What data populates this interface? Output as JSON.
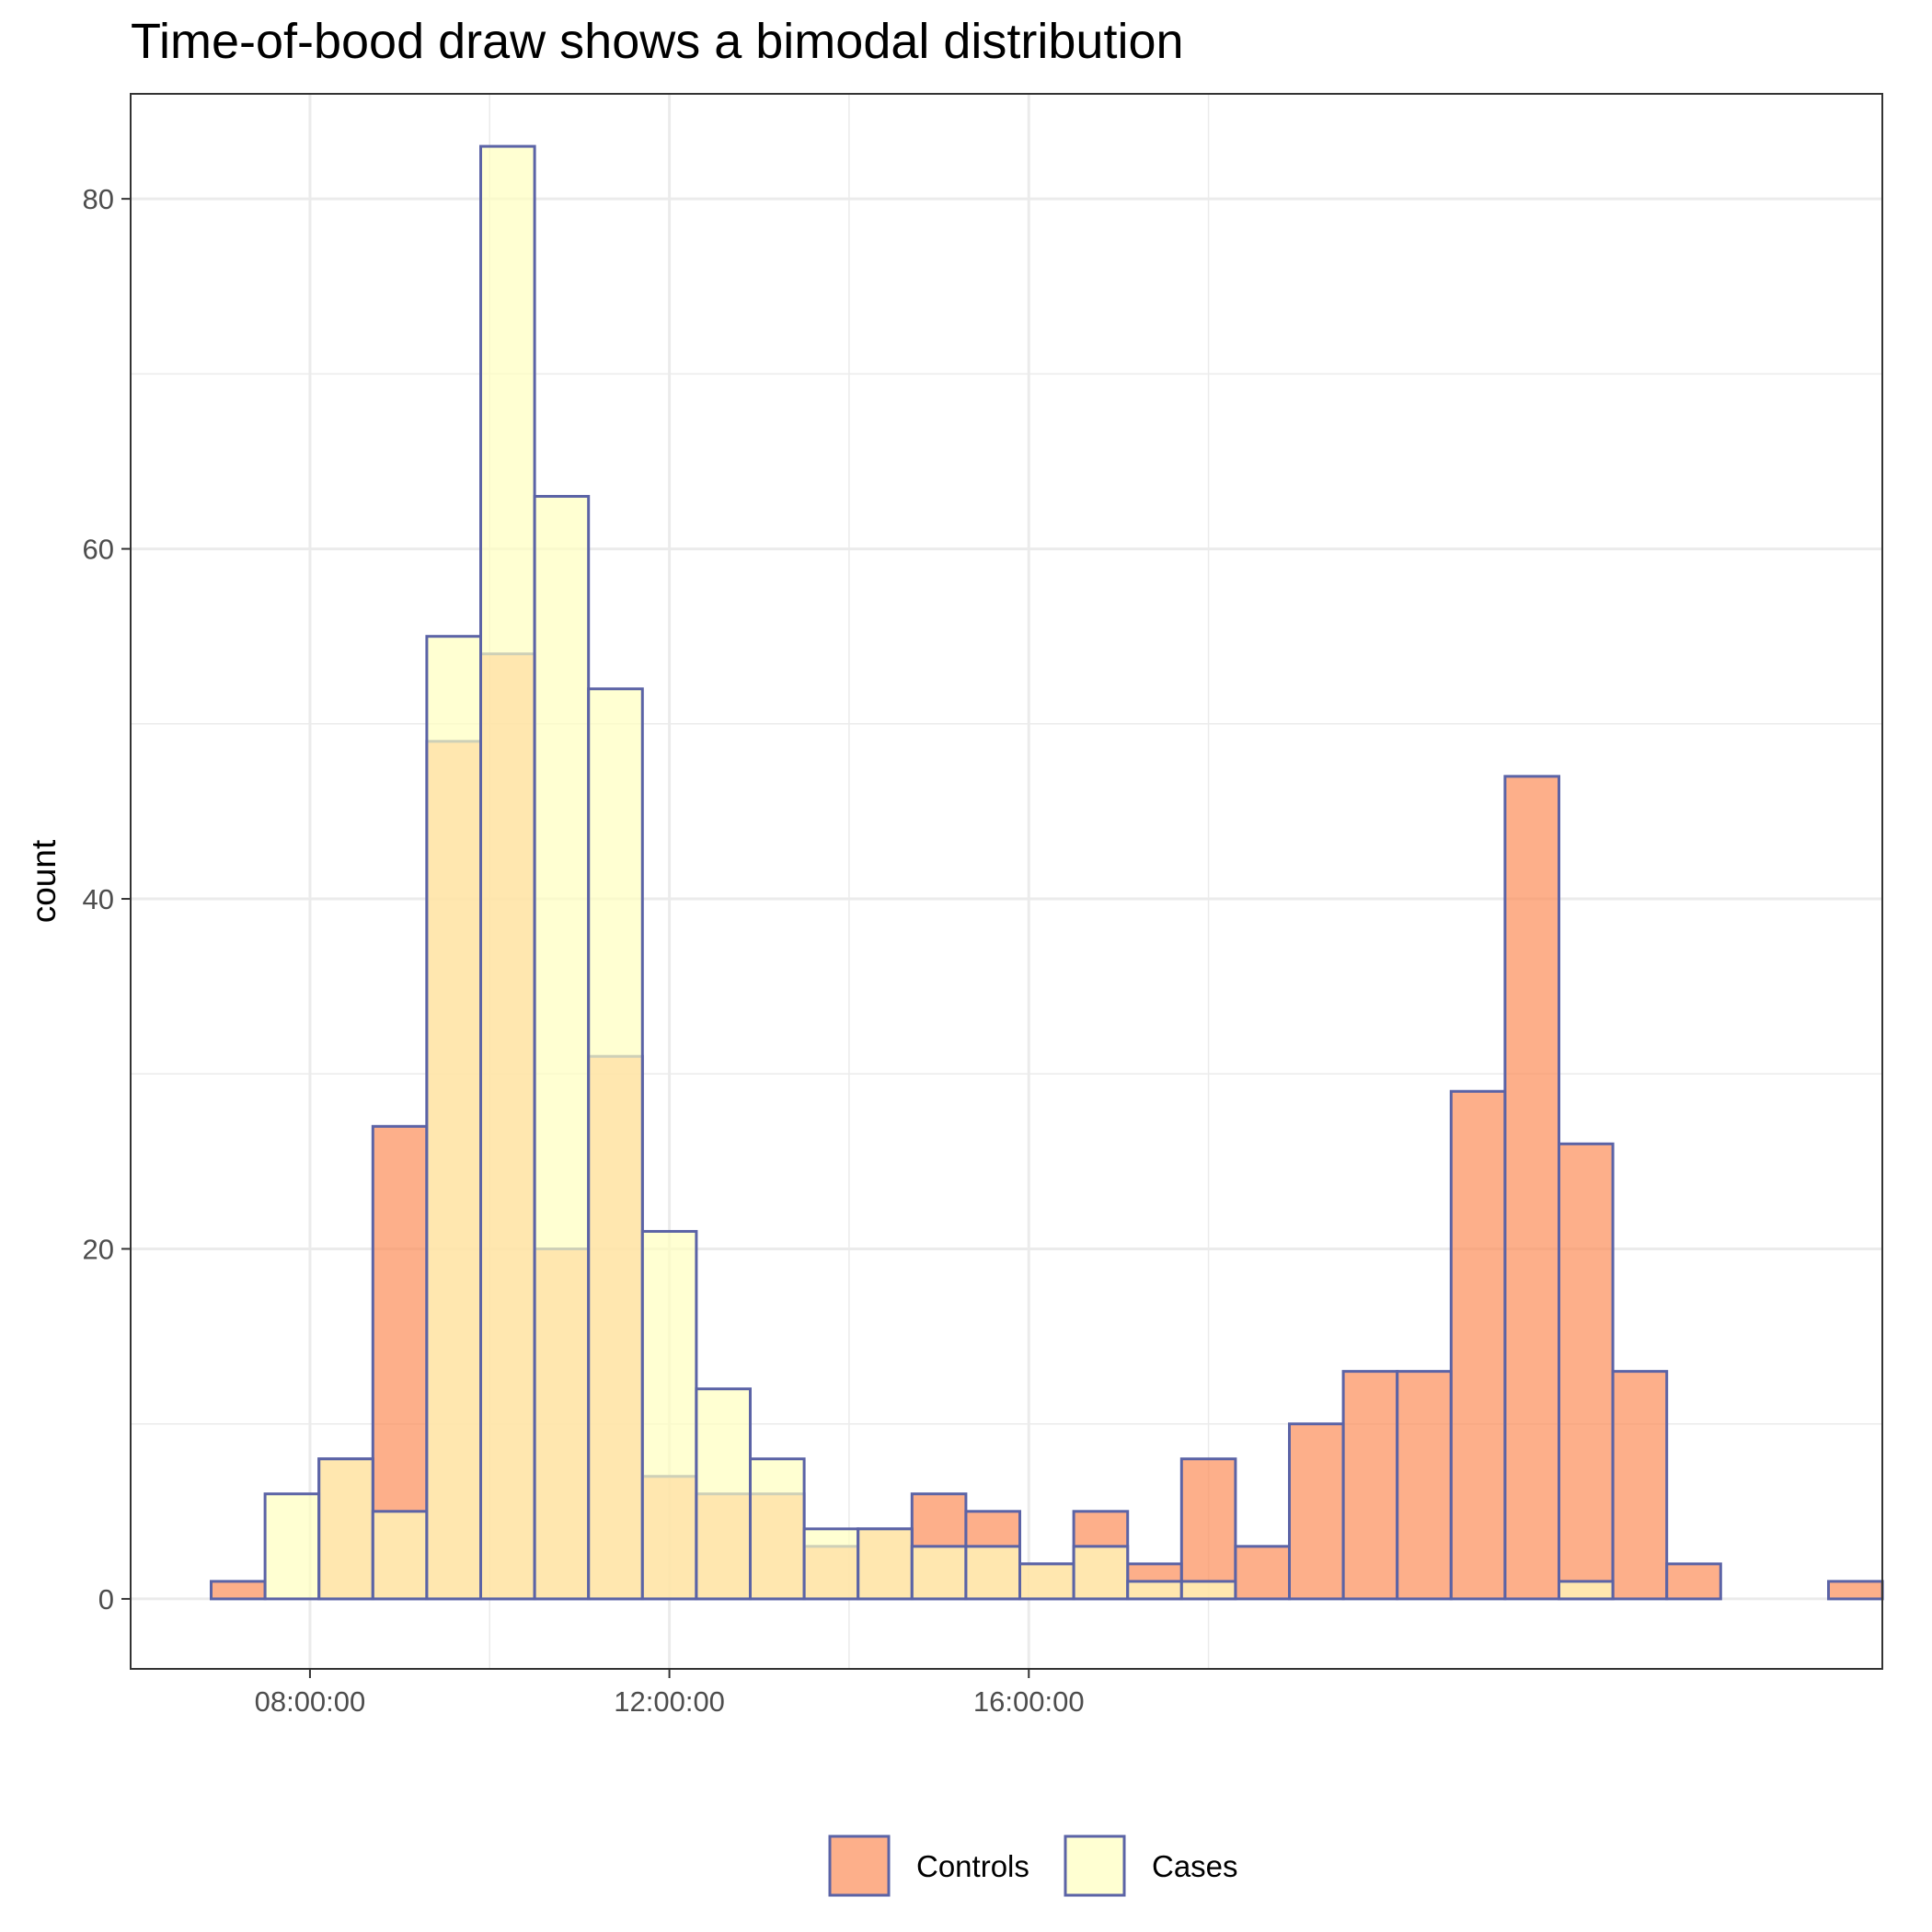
{
  "chart_data": {
    "type": "bar",
    "subtype": "overlaid-histogram",
    "title": "Time-of-bood draw shows a bimodal distribution",
    "xlabel": "",
    "ylabel": "count",
    "bin_width_minutes": 36,
    "bin_starts": [
      "06:54:00",
      "07:30:00",
      "08:06:00",
      "08:42:00",
      "09:18:00",
      "09:54:00",
      "10:30:00",
      "11:06:00",
      "11:42:00",
      "12:18:00",
      "12:54:00",
      "13:30:00",
      "14:06:00",
      "14:42:00",
      "15:18:00",
      "15:54:00",
      "16:30:00",
      "17:06:00",
      "17:42:00",
      "18:18:00",
      "18:54:00",
      "19:30:00",
      "20:06:00",
      "20:42:00",
      "21:18:00",
      "21:54:00",
      "22:30:00",
      "23:06:00",
      "23:42:00",
      "00:18:00",
      "00:54:00"
    ],
    "series": [
      {
        "name": "Controls",
        "color": "#fc8d59",
        "values": [
          1,
          0,
          8,
          27,
          49,
          54,
          20,
          31,
          7,
          6,
          6,
          3,
          4,
          6,
          5,
          2,
          5,
          2,
          8,
          3,
          10,
          13,
          13,
          29,
          47,
          26,
          13,
          2,
          0,
          0,
          1
        ]
      },
      {
        "name": "Cases",
        "color": "#ffffbf",
        "values": [
          0,
          6,
          8,
          5,
          55,
          83,
          63,
          52,
          21,
          12,
          8,
          4,
          4,
          3,
          3,
          2,
          3,
          1,
          1,
          0,
          0,
          0,
          0,
          0,
          0,
          1,
          0,
          0,
          0,
          0,
          0
        ]
      }
    ],
    "xticks": [
      "08:00:00",
      "12:00:00",
      "16:00:00"
    ],
    "yticks": [
      0,
      20,
      40,
      60,
      80
    ],
    "ylim": [
      -4,
      86
    ],
    "bar_outline_color": "#5b63a6",
    "grid": true,
    "legend_position": "bottom"
  }
}
